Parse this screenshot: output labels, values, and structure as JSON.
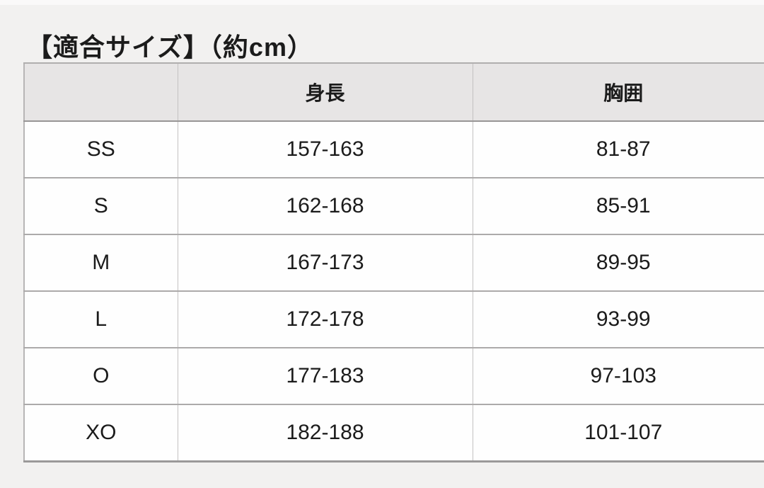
{
  "page": {
    "title": "【適合サイズ】（約cm）"
  },
  "size_table": {
    "columns": [
      "",
      "身長",
      "胸囲"
    ],
    "rows": [
      {
        "size": "SS",
        "height": "157-163",
        "chest": "81-87"
      },
      {
        "size": "S",
        "height": "162-168",
        "chest": "85-91"
      },
      {
        "size": "M",
        "height": "167-173",
        "chest": "89-95"
      },
      {
        "size": "L",
        "height": "172-178",
        "chest": "93-99"
      },
      {
        "size": "O",
        "height": "177-183",
        "chest": "97-103"
      },
      {
        "size": "XO",
        "height": "182-188",
        "chest": "101-107"
      }
    ]
  },
  "colors": {
    "page_bg": "#f2f1f0",
    "header_bg": "#e7e5e5",
    "cell_bg": "#fefefe",
    "border": "#acaaaa",
    "text": "#1b1b1b"
  }
}
